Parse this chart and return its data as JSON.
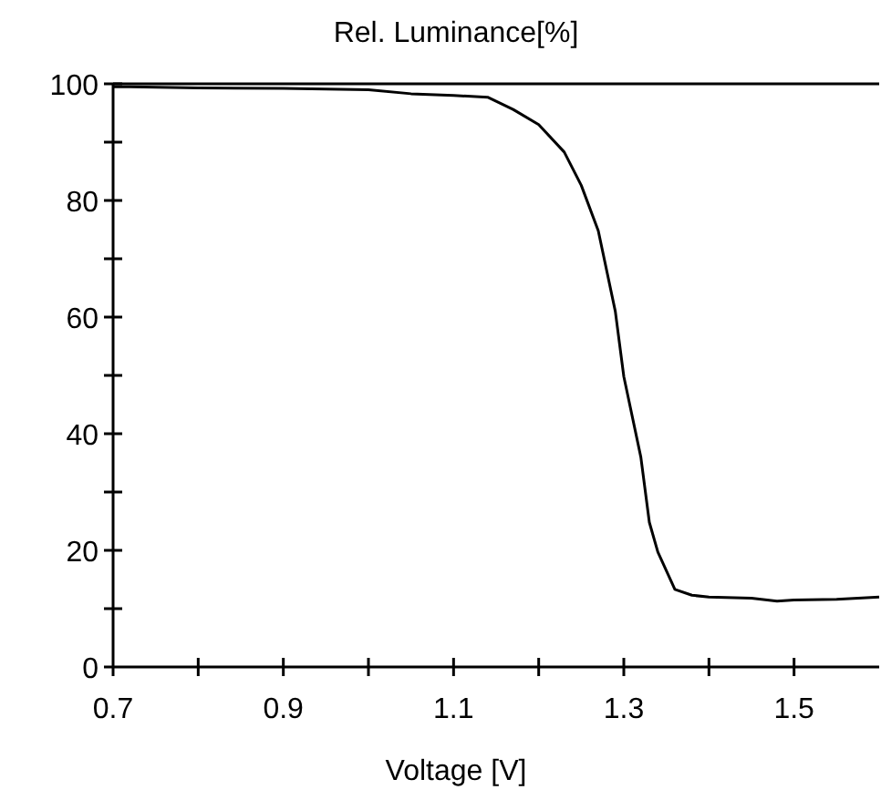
{
  "chart_data": {
    "type": "line",
    "ylabel": "Rel. Luminance[%]",
    "xlabel": "Voltage [V]",
    "x": [
      0.7,
      0.72,
      0.8,
      0.9,
      1.0,
      1.05,
      1.1,
      1.14,
      1.17,
      1.2,
      1.23,
      1.25,
      1.27,
      1.29,
      1.3,
      1.32,
      1.33,
      1.34,
      1.36,
      1.38,
      1.4,
      1.45,
      1.48,
      1.5,
      1.55,
      1.6
    ],
    "series": [
      {
        "color": "#000000",
        "values": [
          99.5,
          99.5,
          99.3,
          99.2,
          99,
          98.3,
          98,
          97.7,
          95.6,
          93,
          88.3,
          82.6,
          74.8,
          61,
          49.8,
          36,
          24.8,
          19.7,
          13.3,
          12.3,
          12,
          11.8,
          11.3,
          11.5,
          11.6,
          12
        ]
      }
    ],
    "xlim": [
      0.7,
      1.6
    ],
    "ylim": [
      0,
      100
    ],
    "xticks": [
      0.7,
      {
        "value": 0.8,
        "label": null
      },
      0.9,
      {
        "value": 1.0,
        "label": null
      },
      1.1,
      {
        "value": 1.2,
        "label": null
      },
      1.3,
      {
        "value": 1.4,
        "label": null
      },
      1.5
    ],
    "yticks": [
      0,
      {
        "value": 10,
        "label": null
      },
      20,
      {
        "value": 30,
        "label": null
      },
      40,
      {
        "value": 50,
        "label": null
      },
      60,
      {
        "value": 70,
        "label": null
      },
      80,
      {
        "value": 90,
        "label": null
      },
      100
    ],
    "grid": false,
    "marker": "none",
    "line_style": "solid"
  }
}
